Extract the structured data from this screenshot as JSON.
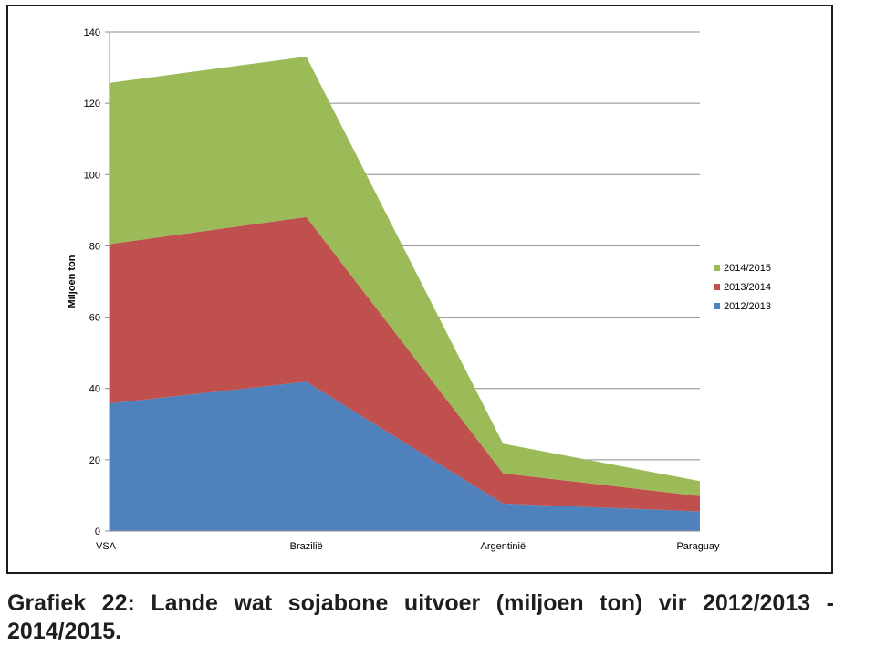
{
  "chart_data": {
    "type": "area",
    "stacked": true,
    "categories": [
      "VSA",
      "Brazilië",
      "Argentinië",
      "Paraguay"
    ],
    "series": [
      {
        "name": "2012/2013",
        "color": "#4f81bd",
        "values": [
          35.8,
          41.9,
          7.7,
          5.5
        ]
      },
      {
        "name": "2013/2014",
        "color": "#c0504d",
        "values": [
          44.7,
          46.2,
          8.5,
          4.3
        ]
      },
      {
        "name": "2014/2015",
        "color": "#9bbb59",
        "values": [
          45.2,
          45.0,
          8.3,
          4.2
        ]
      }
    ],
    "ylabel": "Miljoen ton",
    "xlabel": "",
    "ylim": [
      0,
      140
    ],
    "yticks": [
      0,
      20,
      40,
      60,
      80,
      100,
      120,
      140
    ],
    "grid": true,
    "legend_position": "right",
    "legend_order": [
      "2014/2015",
      "2013/2014",
      "2012/2013"
    ]
  },
  "caption": "Grafiek 22: Lande wat sojabone uitvoer (miljoen ton) vir 2012/2013 - 2014/2015."
}
